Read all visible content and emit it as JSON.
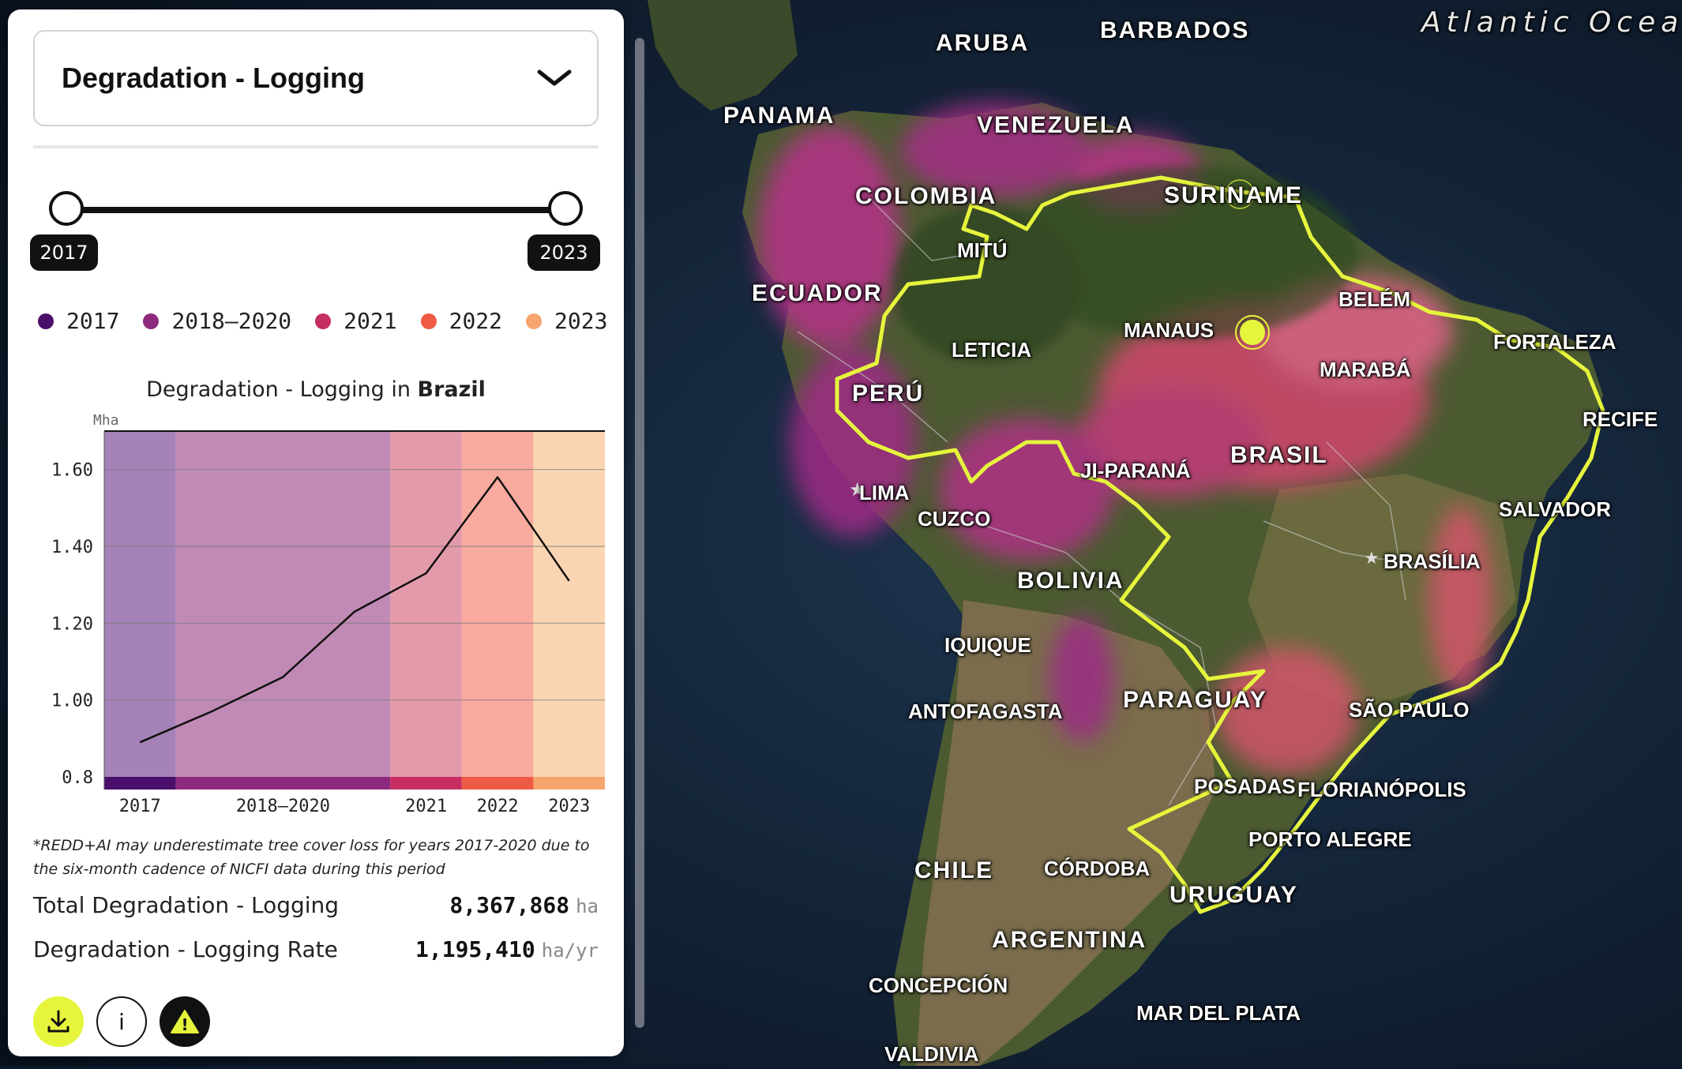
{
  "panel": {
    "dropdown_title": "Degradation - Logging",
    "slider": {
      "start_label": "2017",
      "end_label": "2023"
    },
    "legend": [
      {
        "label": "2017",
        "color": "#4a0f6b"
      },
      {
        "label": "2018–2020",
        "color": "#8e2a7e"
      },
      {
        "label": "2021",
        "color": "#c62d63"
      },
      {
        "label": "2022",
        "color": "#ee5a44"
      },
      {
        "label": "2023",
        "color": "#f7a56e"
      }
    ],
    "chart_title_prefix": "Degradation - Logging in ",
    "chart_title_country": "Brazil",
    "footnote": "*REDD+AI may underestimate tree cover loss for years 2017-2020 due to the six-month cadence of NICFI data during this period",
    "stats": [
      {
        "label": "Total Degradation - Logging",
        "value": "8,367,868",
        "unit": "ha"
      },
      {
        "label": "Degradation - Logging Rate",
        "value": "1,195,410",
        "unit": "ha/yr"
      }
    ],
    "buttons": {
      "download_icon": "download-icon",
      "info_label": "i",
      "alert_label": "!"
    }
  },
  "chart_data": {
    "type": "line",
    "ylabel": "Mha",
    "ylim": [
      0.8,
      1.7
    ],
    "yticks": [
      "0.8",
      "1.00",
      "1.20",
      "1.40",
      "1.60"
    ],
    "ytick_values": [
      0.8,
      1.0,
      1.2,
      1.4,
      1.6
    ],
    "x": [
      2017,
      2018,
      2019,
      2020,
      2021,
      2022,
      2023
    ],
    "values": [
      0.89,
      0.97,
      1.06,
      1.23,
      1.33,
      1.58,
      1.31
    ],
    "bands": [
      {
        "label": "2017",
        "from": 2016.5,
        "to": 2017.5,
        "color": "#a582b8",
        "base": "#4a0f6b"
      },
      {
        "label": "2018–2020",
        "from": 2017.5,
        "to": 2020.5,
        "color": "#c18ab5",
        "base": "#8e2a7e"
      },
      {
        "label": "2021",
        "from": 2020.5,
        "to": 2021.5,
        "color": "#e39aaa",
        "base": "#c62d63"
      },
      {
        "label": "2022",
        "from": 2021.5,
        "to": 2022.5,
        "color": "#f9ab9f",
        "base": "#ee5a44"
      },
      {
        "label": "2023",
        "from": 2022.5,
        "to": 2023.5,
        "color": "#fbd5b3",
        "base": "#f7a56e"
      }
    ],
    "xticks": [
      {
        "label": "2017",
        "at": 2017
      },
      {
        "label": "2018–2020",
        "at": 2019
      },
      {
        "label": "2021",
        "at": 2021
      },
      {
        "label": "2022",
        "at": 2022
      },
      {
        "label": "2023",
        "at": 2023
      }
    ],
    "grid": true
  },
  "map": {
    "ocean_label": "Atlantic Ocean",
    "countries": [
      "ARUBA",
      "BARBADOS",
      "PANAMA",
      "VENEZUELA",
      "COLOMBIA",
      "SURINAME",
      "ECUADOR",
      "PERÚ",
      "BRASIL",
      "BOLIVIA",
      "PARAGUAY",
      "CHILE",
      "URUGUAY",
      "ARGENTINA"
    ],
    "cities": [
      "MITÚ",
      "LETICIA",
      "MANAUS",
      "BELÉM",
      "MARABÁ",
      "FORTALEZA",
      "RECIFE",
      "JI-PARANÁ",
      "LIMA",
      "CUZCO",
      "SALVADOR",
      "BRASÍLIA",
      "IQUIQUE",
      "ANTOFAGASTA",
      "SÃO PAULO",
      "POSADAS",
      "FLORIANÓPOLIS",
      "PORTO ALEGRE",
      "CÓRDOBA",
      "CONCEPCIÓN",
      "MAR DEL PLATA",
      "VALDIVIA"
    ],
    "highlight_color": "#e6f53c"
  }
}
